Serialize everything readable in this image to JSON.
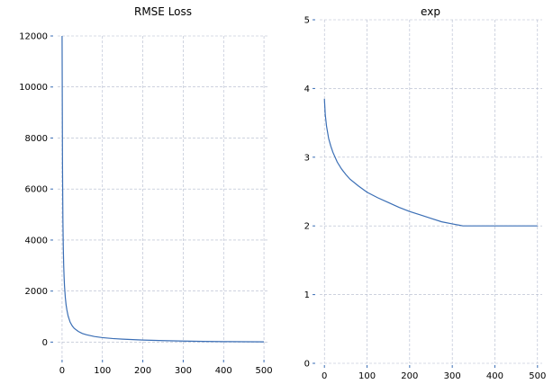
{
  "colors": {
    "line": "#3a6eb5",
    "grid": "#b0b8cc",
    "tick": "#3a6eb5"
  },
  "chart_data": [
    {
      "type": "line",
      "title": "RMSE Loss",
      "xlabel": "",
      "ylabel": "",
      "xlim": [
        -11,
        511
      ],
      "ylim": [
        -620,
        12000
      ],
      "xticks": [
        0,
        100,
        200,
        300,
        400,
        500
      ],
      "yticks": [
        0,
        2000,
        4000,
        6000,
        8000,
        10000,
        12000
      ],
      "grid": true,
      "series": [
        {
          "x": [
            0,
            1,
            2,
            3,
            4,
            5,
            6,
            8,
            10,
            12,
            15,
            20,
            25,
            30,
            40,
            50,
            60,
            80,
            100,
            125,
            150,
            200,
            250,
            300,
            350,
            400,
            450,
            500
          ],
          "y": [
            12000,
            7000,
            4800,
            3700,
            3000,
            2550,
            2200,
            1750,
            1450,
            1250,
            1020,
            780,
            640,
            540,
            420,
            340,
            290,
            220,
            175,
            140,
            115,
            80,
            58,
            40,
            28,
            20,
            15,
            10
          ]
        }
      ]
    },
    {
      "type": "line",
      "title": "exp",
      "xlabel": "",
      "ylabel": "",
      "xlim": [
        -11,
        511
      ],
      "ylim": [
        0,
        5
      ],
      "xticks": [
        0,
        100,
        200,
        300,
        400,
        500
      ],
      "yticks": [
        0,
        1,
        2,
        3,
        4,
        5
      ],
      "grid": true,
      "series": [
        {
          "x": [
            0,
            2,
            5,
            10,
            15,
            20,
            30,
            40,
            50,
            60,
            80,
            100,
            125,
            150,
            175,
            200,
            225,
            250,
            275,
            300,
            325,
            350,
            400,
            450,
            500
          ],
          "y": [
            3.85,
            3.62,
            3.45,
            3.27,
            3.16,
            3.07,
            2.93,
            2.83,
            2.75,
            2.68,
            2.58,
            2.49,
            2.41,
            2.34,
            2.27,
            2.21,
            2.16,
            2.11,
            2.06,
            2.03,
            2.0,
            2.0,
            2.0,
            2.0,
            2.0
          ]
        }
      ]
    }
  ]
}
